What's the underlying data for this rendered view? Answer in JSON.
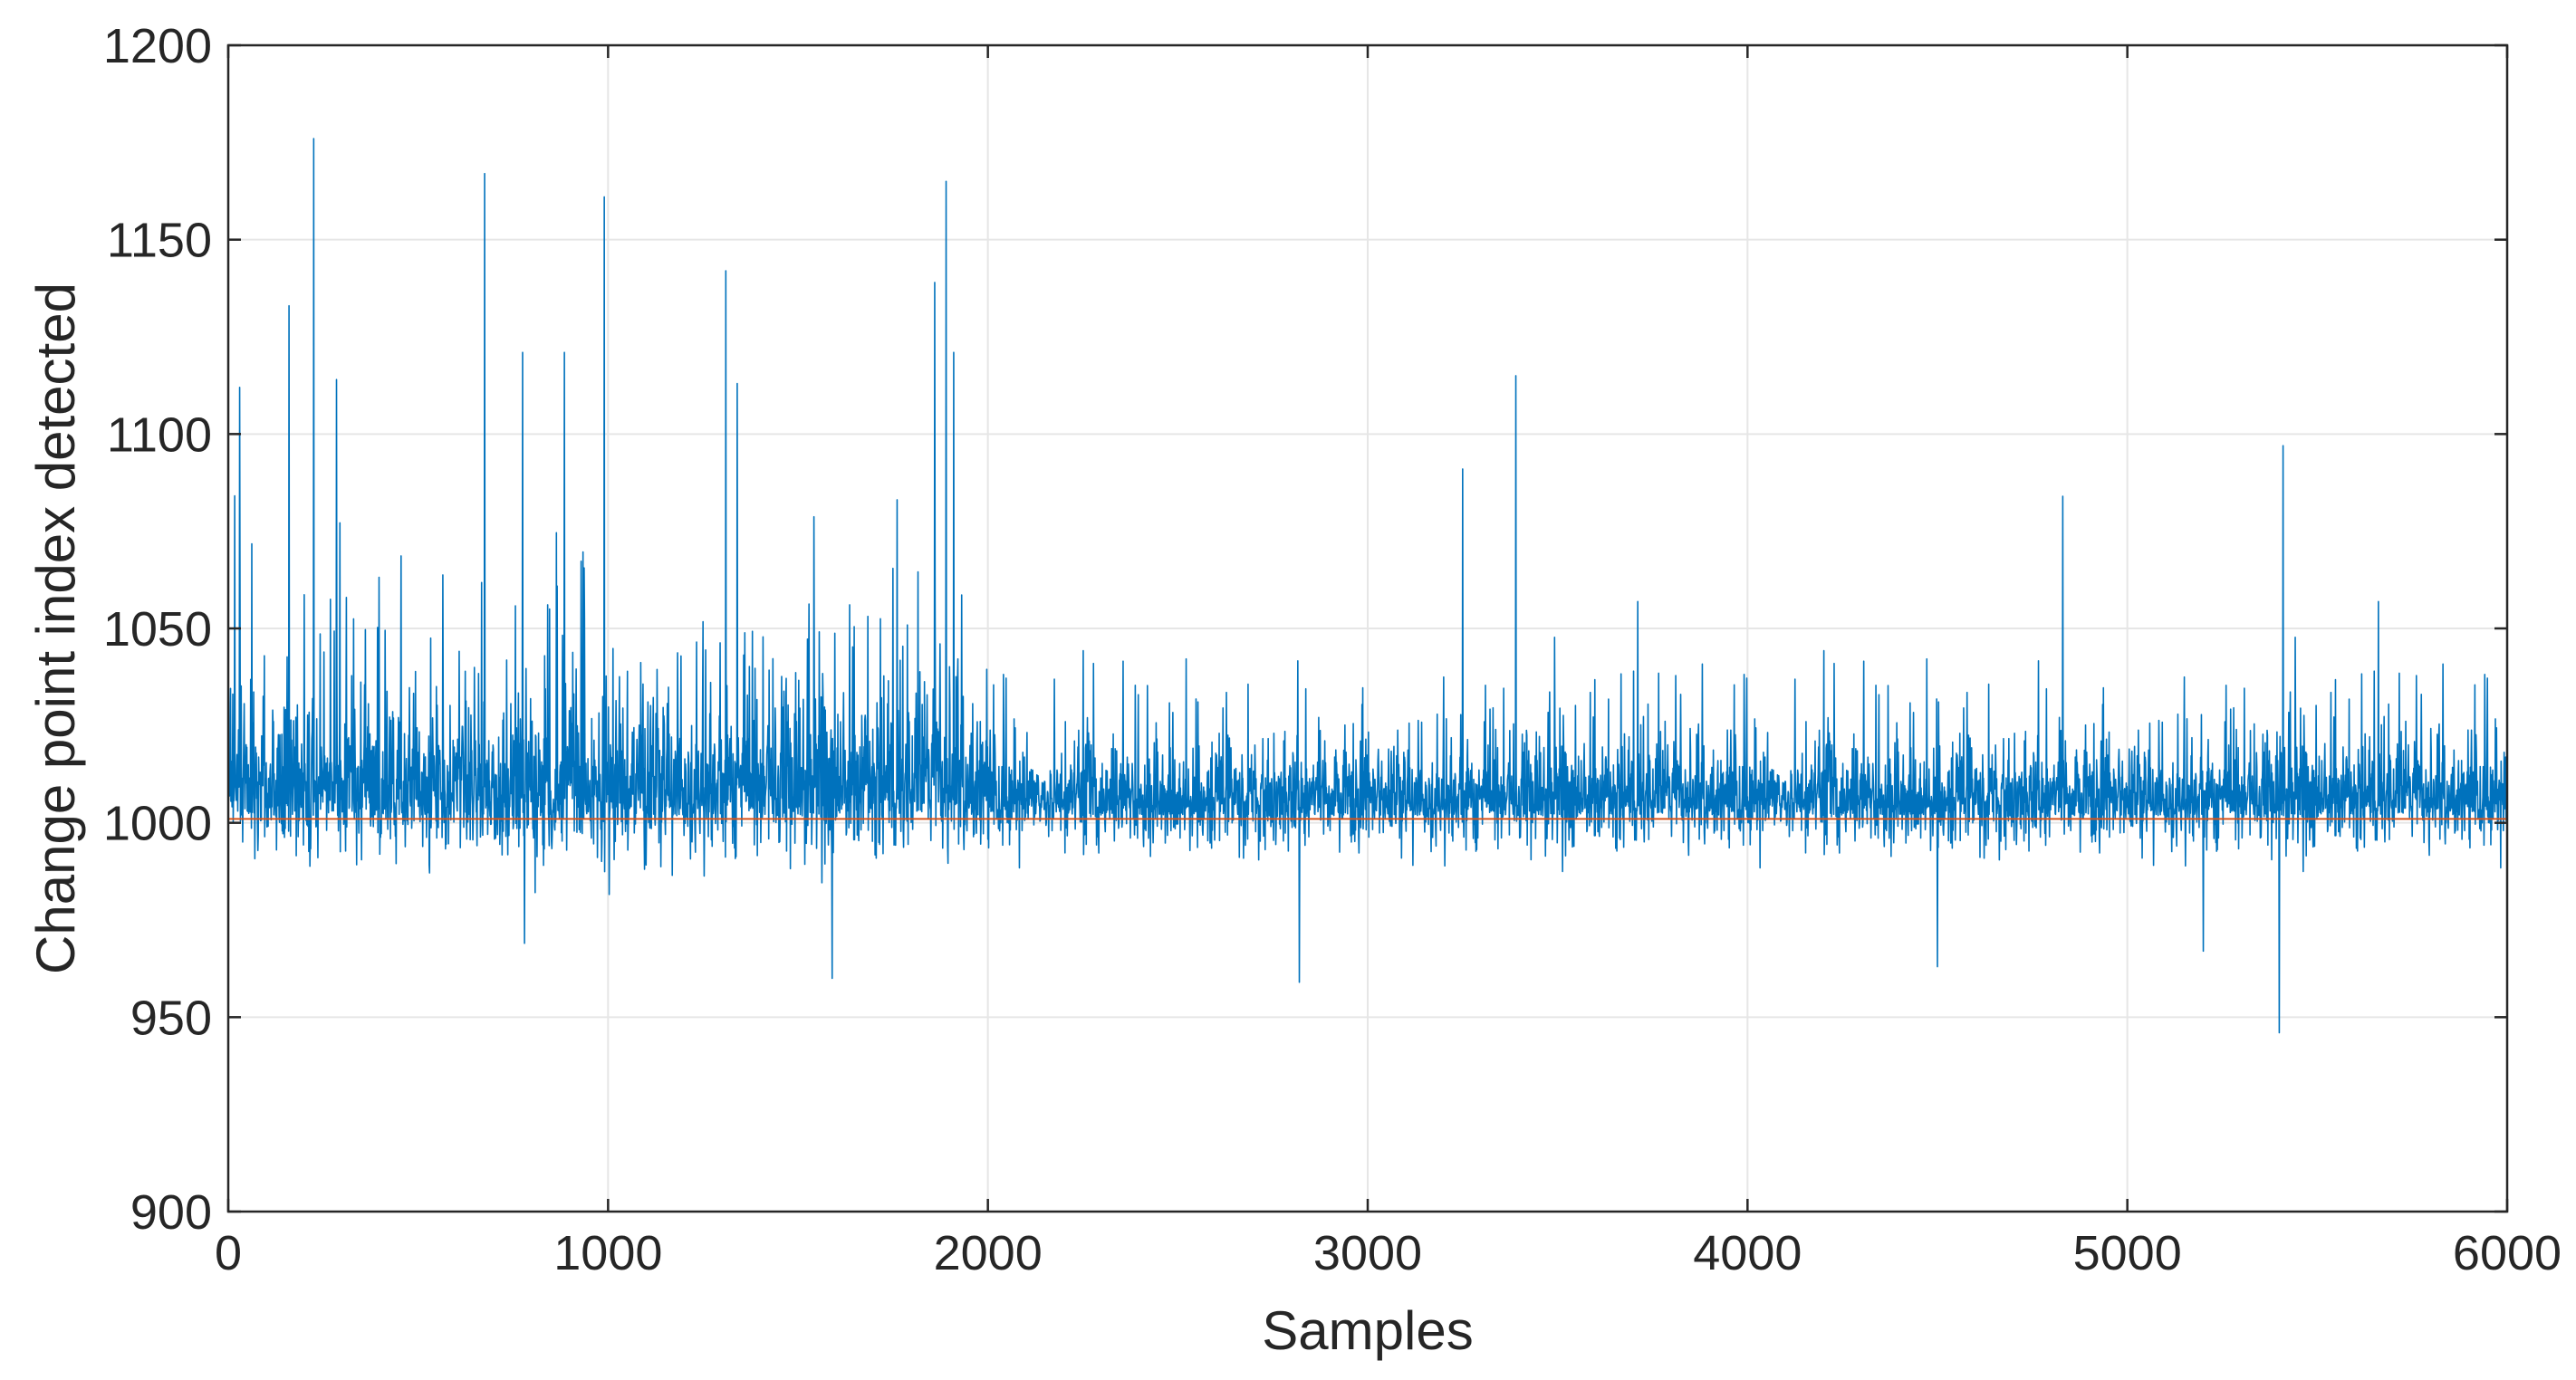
{
  "chart_data": {
    "type": "line",
    "title": "",
    "xlabel": "Samples",
    "ylabel": "Change point index detected",
    "xlim": [
      0,
      6000
    ],
    "ylim": [
      900,
      1200
    ],
    "xticks": [
      0,
      1000,
      2000,
      3000,
      4000,
      5000,
      6000
    ],
    "yticks": [
      900,
      950,
      1000,
      1050,
      1100,
      1150,
      1200
    ],
    "grid": true,
    "colors": {
      "series": "#0072BD",
      "reference": "#D95319",
      "axis": "#262626",
      "grid": "#E6E6E6"
    },
    "series": [
      {
        "role": "detected-index",
        "x_range": [
          1,
          6000
        ],
        "baseline": 1002,
        "typical_min": 995,
        "typical_max": 1030,
        "peaks": [
          {
            "x": 30,
            "y": 1112
          },
          {
            "x": 160,
            "y": 1133
          },
          {
            "x": 225,
            "y": 1176
          },
          {
            "x": 285,
            "y": 1114
          },
          {
            "x": 675,
            "y": 1167
          },
          {
            "x": 775,
            "y": 1121
          },
          {
            "x": 885,
            "y": 1121
          },
          {
            "x": 990,
            "y": 1161
          },
          {
            "x": 1310,
            "y": 1142
          },
          {
            "x": 1340,
            "y": 1113
          },
          {
            "x": 1860,
            "y": 1139
          },
          {
            "x": 1890,
            "y": 1165
          },
          {
            "x": 1910,
            "y": 1121
          },
          {
            "x": 3250,
            "y": 1091
          },
          {
            "x": 3390,
            "y": 1115
          },
          {
            "x": 4830,
            "y": 1084
          },
          {
            "x": 5410,
            "y": 1097
          }
        ],
        "troughs": [
          {
            "x": 780,
            "y": 969
          },
          {
            "x": 1590,
            "y": 960
          },
          {
            "x": 2820,
            "y": 959
          },
          {
            "x": 4500,
            "y": 963
          },
          {
            "x": 5400,
            "y": 946
          },
          {
            "x": 5200,
            "y": 967
          }
        ]
      },
      {
        "role": "true-change-point",
        "constant": 1001
      }
    ]
  }
}
